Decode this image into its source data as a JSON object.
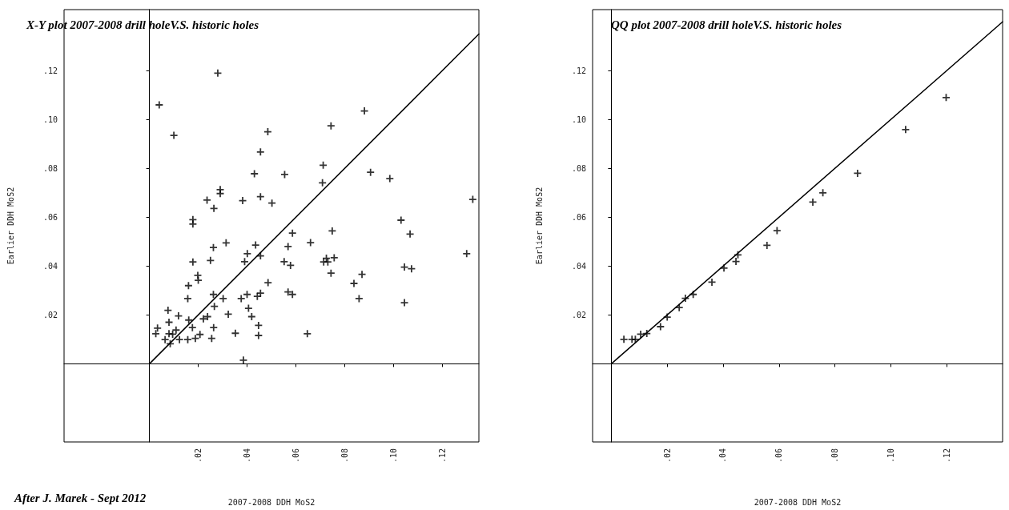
{
  "chart_data": [
    {
      "type": "scatter",
      "title": "X-Y plot 2007-2008 drill holeV.S. historic holes",
      "xlabel": "2007-2008 DDH MoS2",
      "ylabel": "Earlier DDH MoS2",
      "annotations": [
        "After J. Marek - Sept 2012"
      ],
      "grid": false,
      "xlim": [
        -0.035,
        0.135
      ],
      "ylim": [
        -0.032,
        0.145
      ],
      "xticks": [
        {
          "value": 0.02,
          "label": ".02"
        },
        {
          "value": 0.04,
          "label": ".04"
        },
        {
          "value": 0.06,
          "label": ".06"
        },
        {
          "value": 0.08,
          "label": ".08"
        },
        {
          "value": 0.1,
          "label": ".10"
        },
        {
          "value": 0.12,
          "label": ".12"
        }
      ],
      "yticks": [
        {
          "value": 0.02,
          "label": ".02"
        },
        {
          "value": 0.04,
          "label": ".04"
        },
        {
          "value": 0.06,
          "label": ".06"
        },
        {
          "value": 0.08,
          "label": ".08"
        },
        {
          "value": 0.1,
          "label": ".10"
        },
        {
          "value": 0.12,
          "label": ".12"
        }
      ],
      "series": [
        {
          "marker": "cross",
          "color": "#000000",
          "x": [
            0.004,
            0.028,
            0.01,
            0.0485,
            0.0455,
            0.043,
            0.0554,
            0.029,
            0.029,
            0.0455,
            0.0236,
            0.0382,
            0.0502,
            0.0264,
            0.0178,
            0.0178,
            0.0314,
            0.0435,
            0.0262,
            0.0586,
            0.0568,
            0.0401,
            0.0455,
            0.0178,
            0.025,
            0.039,
            0.0552,
            0.0578,
            0.0198,
            0.02,
            0.0486,
            0.016,
            0.0568,
            0.0586,
            0.0262,
            0.04,
            0.0455,
            0.0442,
            0.0157,
            0.0302,
            0.0376,
            0.0266,
            0.0406,
            0.0076,
            0.0119,
            0.0323,
            0.0238,
            0.0419,
            0.0221,
            0.0161,
            0.008,
            0.0033,
            0.0176,
            0.0263,
            0.0447,
            0.0109,
            0.0026,
            0.008,
            0.0095,
            0.0207,
            0.0352,
            0.0447,
            0.0064,
            0.0123,
            0.0157,
            0.0188,
            0.0255,
            0.0085,
            0.0385,
            0.0647,
            0.0881,
            0.0744,
            0.0712,
            0.0709,
            0.0906,
            0.0985,
            0.1031,
            0.1068,
            0.13,
            0.1325,
            0.0749,
            0.066,
            0.0757,
            0.0714,
            0.0731,
            0.0725,
            0.0744,
            0.0871,
            0.0838,
            0.0859,
            0.1045,
            0.1074,
            0.1045
          ],
          "values": [
            0.106,
            0.119,
            0.0935,
            0.095,
            0.0867,
            0.0778,
            0.0775,
            0.0713,
            0.0697,
            0.0684,
            0.067,
            0.0668,
            0.0658,
            0.0636,
            0.059,
            0.0572,
            0.0495,
            0.0486,
            0.0476,
            0.0535,
            0.048,
            0.0451,
            0.0442,
            0.0417,
            0.0423,
            0.0418,
            0.0418,
            0.0403,
            0.0362,
            0.0342,
            0.0332,
            0.032,
            0.0294,
            0.0284,
            0.0284,
            0.0284,
            0.0289,
            0.0276,
            0.0267,
            0.0267,
            0.0267,
            0.0235,
            0.0227,
            0.0219,
            0.0196,
            0.0203,
            0.0193,
            0.0193,
            0.0184,
            0.0179,
            0.017,
            0.0146,
            0.0148,
            0.0148,
            0.0157,
            0.0138,
            0.0123,
            0.0123,
            0.0121,
            0.012,
            0.0125,
            0.0116,
            0.0099,
            0.0099,
            0.0099,
            0.0104,
            0.0104,
            0.0082,
            0.0015,
            0.0123,
            0.1035,
            0.0974,
            0.0813,
            0.0741,
            0.0784,
            0.0758,
            0.0588,
            0.0531,
            0.0451,
            0.0673,
            0.0544,
            0.0496,
            0.0434,
            0.0417,
            0.0417,
            0.0432,
            0.0371,
            0.0366,
            0.0329,
            0.0267,
            0.0396,
            0.0389,
            0.025
          ]
        },
        {
          "type": "line",
          "marker": "none",
          "color": "#000000",
          "line_style": "solid",
          "x": [
            0,
            0.135
          ],
          "values": [
            0,
            0.135
          ]
        }
      ]
    },
    {
      "type": "scatter",
      "title": "QQ plot 2007-2008 drill holeV.S. historic holes",
      "xlabel": "2007-2008 DDH MoS2",
      "ylabel": "Earlier DDH MoS2",
      "grid": false,
      "xlim": [
        -0.0067,
        0.14
      ],
      "ylim": [
        -0.032,
        0.145
      ],
      "xticks": [
        {
          "value": 0.02,
          "label": ".02"
        },
        {
          "value": 0.04,
          "label": ".04"
        },
        {
          "value": 0.06,
          "label": ".06"
        },
        {
          "value": 0.08,
          "label": ".08"
        },
        {
          "value": 0.1,
          "label": ".10"
        },
        {
          "value": 0.12,
          "label": ".12"
        }
      ],
      "yticks": [
        {
          "value": 0.02,
          "label": ".02"
        },
        {
          "value": 0.04,
          "label": ".04"
        },
        {
          "value": 0.06,
          "label": ".06"
        },
        {
          "value": 0.08,
          "label": ".08"
        },
        {
          "value": 0.1,
          "label": ".10"
        },
        {
          "value": 0.12,
          "label": ".12"
        }
      ],
      "series": [
        {
          "marker": "cross",
          "color": "#000000",
          "x": [
            0.0045,
            0.0074,
            0.0086,
            0.0105,
            0.0127,
            0.0176,
            0.02,
            0.0243,
            0.0265,
            0.0293,
            0.036,
            0.0403,
            0.0446,
            0.0453,
            0.0557,
            0.0593,
            0.0721,
            0.0757,
            0.0881,
            0.1053,
            0.1198
          ],
          "values": [
            0.01,
            0.01,
            0.01,
            0.0121,
            0.0124,
            0.0152,
            0.0191,
            0.023,
            0.0268,
            0.0284,
            0.0334,
            0.0392,
            0.0419,
            0.0446,
            0.0485,
            0.0545,
            0.0662,
            0.07,
            0.078,
            0.0959,
            0.109
          ]
        },
        {
          "type": "line",
          "marker": "none",
          "color": "#000000",
          "line_style": "solid",
          "x": [
            0,
            0.14
          ],
          "values": [
            0,
            0.14
          ]
        }
      ]
    }
  ]
}
